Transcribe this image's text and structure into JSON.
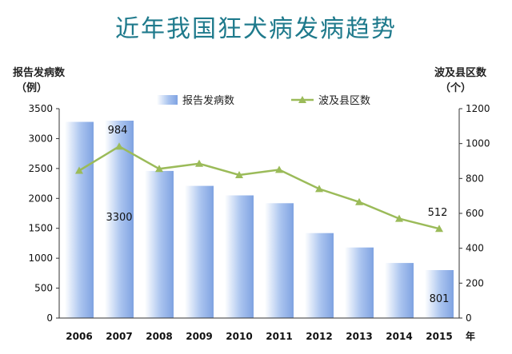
{
  "chart_data": {
    "type": "bar",
    "title": "近年我国狂犬病发病趋势",
    "ylabel_left": [
      "报告发病数",
      "（例）"
    ],
    "ylabel_right": [
      "波及县区数",
      "（个）"
    ],
    "xlabel": "年",
    "categories": [
      "2006",
      "2007",
      "2008",
      "2009",
      "2010",
      "2011",
      "2012",
      "2013",
      "2014",
      "2015"
    ],
    "ylim_left": [
      0,
      3500
    ],
    "yticks_left": [
      0,
      500,
      1000,
      1500,
      2000,
      2500,
      3000,
      3500
    ],
    "ylim_right": [
      0,
      1200
    ],
    "yticks_right": [
      0,
      200,
      400,
      600,
      800,
      1000,
      1200
    ],
    "grid": false,
    "legend_position": "top-center",
    "series": [
      {
        "name": "报告发病数",
        "type": "bar",
        "axis": "left",
        "color": "#8fb0e8",
        "values": [
          3280,
          3300,
          2460,
          2210,
          2050,
          1920,
          1420,
          1180,
          920,
          801
        ]
      },
      {
        "name": "波及县区数",
        "type": "line",
        "axis": "right",
        "color": "#9bbb59",
        "marker": "triangle",
        "values": [
          845,
          984,
          855,
          885,
          820,
          850,
          740,
          665,
          570,
          512
        ]
      }
    ],
    "data_labels": [
      {
        "series": "波及县区数",
        "category": "2007",
        "text": "984"
      },
      {
        "series": "报告发病数",
        "category": "2007",
        "text": "3300"
      },
      {
        "series": "波及县区数",
        "category": "2015",
        "text": "512"
      },
      {
        "series": "报告发病数",
        "category": "2015",
        "text": "801"
      }
    ]
  }
}
